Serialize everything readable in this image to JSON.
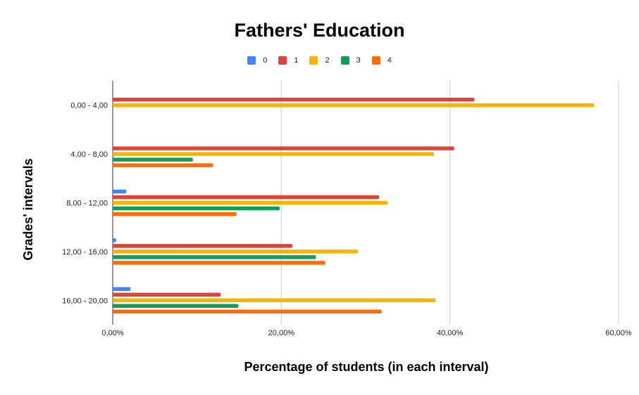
{
  "chart_data": {
    "type": "bar",
    "orientation": "horizontal",
    "title": "Fathers' Education",
    "xlabel": "Percentage of students (in each interval)",
    "ylabel": "Grades' intervals",
    "categories": [
      "0,00 - 4,00",
      "4,00 - 8,00",
      "8,00 - 12,00",
      "12,00 - 16,00",
      "16,00 - 20,00"
    ],
    "series": [
      {
        "name": "0",
        "color": "#4285f4",
        "values": [
          0,
          0,
          1.6,
          0.4,
          2.1
        ]
      },
      {
        "name": "1",
        "color": "#db4437",
        "values": [
          42.9,
          40.5,
          31.6,
          21.3,
          12.8
        ]
      },
      {
        "name": "2",
        "color": "#f4b400",
        "values": [
          57.1,
          38.1,
          32.6,
          29.1,
          38.3
        ]
      },
      {
        "name": "3",
        "color": "#0f9d58",
        "values": [
          0,
          9.5,
          19.8,
          24.1,
          14.9
        ]
      },
      {
        "name": "4",
        "color": "#ff6d00",
        "values": [
          0,
          11.9,
          14.7,
          25.2,
          31.9
        ]
      }
    ],
    "xlim": [
      0,
      60
    ],
    "xticks": [
      "0,00%",
      "20,00%",
      "40,00%",
      "60,00%"
    ],
    "grid": true,
    "legend_position": "top"
  }
}
